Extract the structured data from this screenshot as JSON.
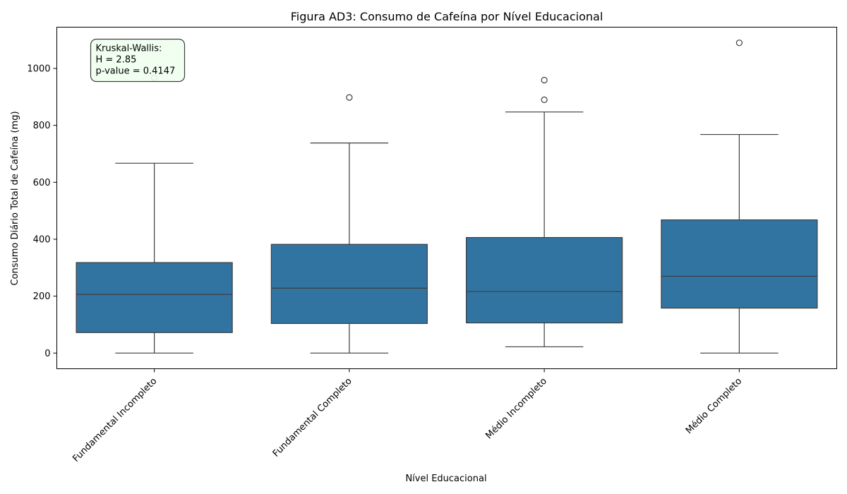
{
  "chart_data": {
    "type": "box",
    "title": "Figura AD3: Consumo de Cafeína por Nível Educacional",
    "xlabel": "Nível Educacional",
    "ylabel": "Consumo Diário Total de Cafeína (mg)",
    "ylim": [
      -55,
      1145
    ],
    "yticks": [
      0,
      200,
      400,
      600,
      800,
      1000
    ],
    "grid": false,
    "box_color": "#3274a1",
    "line_color": "#3d3d3d",
    "categories": [
      "Fundamental Incompleto",
      "Fundamental Completo",
      "Médio Incompleto",
      "Médio Completo"
    ],
    "boxes": [
      {
        "category": "Fundamental Incompleto",
        "whisker_low": 0,
        "q1": 72,
        "median": 206,
        "q3": 318,
        "whisker_high": 667,
        "outliers": [
          967
        ]
      },
      {
        "category": "Fundamental Completo",
        "whisker_low": 0,
        "q1": 104,
        "median": 228,
        "q3": 382,
        "whisker_high": 738,
        "outliers": [
          898
        ]
      },
      {
        "category": "Médio Incompleto",
        "whisker_low": 22,
        "q1": 106,
        "median": 216,
        "q3": 406,
        "whisker_high": 847,
        "outliers": [
          890,
          959
        ]
      },
      {
        "category": "Médio Completo",
        "whisker_low": 0,
        "q1": 158,
        "median": 270,
        "q3": 468,
        "whisker_high": 768,
        "outliers": [
          1090
        ]
      }
    ],
    "annotation": {
      "lines": [
        "Kruskal-Wallis:",
        "H = 2.85",
        "p-value = 0.4147"
      ],
      "position": "top-left",
      "background": "#f0fff0",
      "border": "#3d3d3d"
    }
  }
}
